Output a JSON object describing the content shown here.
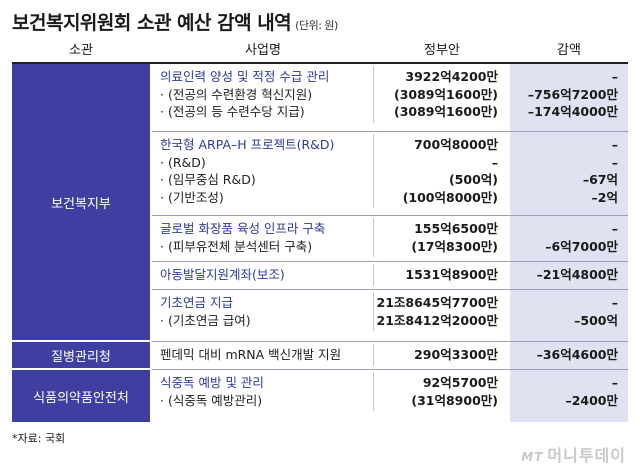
{
  "title": "보건복지위원회 소관 예산 감액 내역",
  "unit": "(단위: 원)",
  "headers": {
    "ministry": "소관",
    "program": "사업명",
    "budget": "정부안",
    "cut": "감액"
  },
  "categories": [
    "보건복지부",
    "질병관리청",
    "식품의약품안전처"
  ],
  "groups": [
    {
      "rows": [
        {
          "name": "의료인력 양성 및 적정 수급 관리",
          "budget": "3922억4200만",
          "cut": "–",
          "main": true
        },
        {
          "name": "· (전공의 수련환경 혁신지원)",
          "budget": "(3089억1600만)",
          "cut": "–756억7200만",
          "main": false
        },
        {
          "name": "· (전공의 등 수련수당 지급)",
          "budget": "(3089억1600만)",
          "cut": "–174억4000만",
          "main": false
        }
      ]
    },
    {
      "rows": [
        {
          "name": "한국형 ARPA–H 프로젝트(R&D)",
          "budget": "700억8000만",
          "cut": "–",
          "main": true
        },
        {
          "name": "· (R&D)",
          "budget": "–",
          "cut": "–",
          "main": false
        },
        {
          "name": "· (임무중심 R&D)",
          "budget": "(500억)",
          "cut": "–67억",
          "main": false
        },
        {
          "name": "· (기반조성)",
          "budget": "(100억8000만)",
          "cut": "–2억",
          "main": false
        }
      ]
    },
    {
      "rows": [
        {
          "name": "글로벌 화장품 육성 인프라 구축",
          "budget": "155억6500만",
          "cut": "–",
          "main": true
        },
        {
          "name": "· (피부유전체 분석센터 구축)",
          "budget": "(17억8300만)",
          "cut": "–6억7000만",
          "main": false
        }
      ]
    },
    {
      "rows": [
        {
          "name": "아동발달지원계좌(보조)",
          "budget": "1531억8900만",
          "cut": "–21억4800만",
          "main": true
        }
      ]
    },
    {
      "rows": [
        {
          "name": "기초연금 지급",
          "budget": "21조8645억7700만",
          "cut": "–",
          "main": true
        },
        {
          "name": "· (기초연금 급여)",
          "budget": "21조8412억2000만",
          "cut": "–500억",
          "main": false
        }
      ]
    },
    {
      "rows": [
        {
          "name": "펜데믹 대비 mRNA 백신개발 지원",
          "budget": "290억3300만",
          "cut": "–36억4600만",
          "main": false
        }
      ]
    },
    {
      "rows": [
        {
          "name": "식중독 예방 및 관리",
          "budget": "92억5700만",
          "cut": "–",
          "main": true
        },
        {
          "name": "· (식중독 예방관리)",
          "budget": "(31억8900만)",
          "cut": "–2400만",
          "main": false
        }
      ]
    }
  ],
  "source": "*자료: 국회",
  "logo": {
    "mark": "MT",
    "name": "머니투데이"
  }
}
